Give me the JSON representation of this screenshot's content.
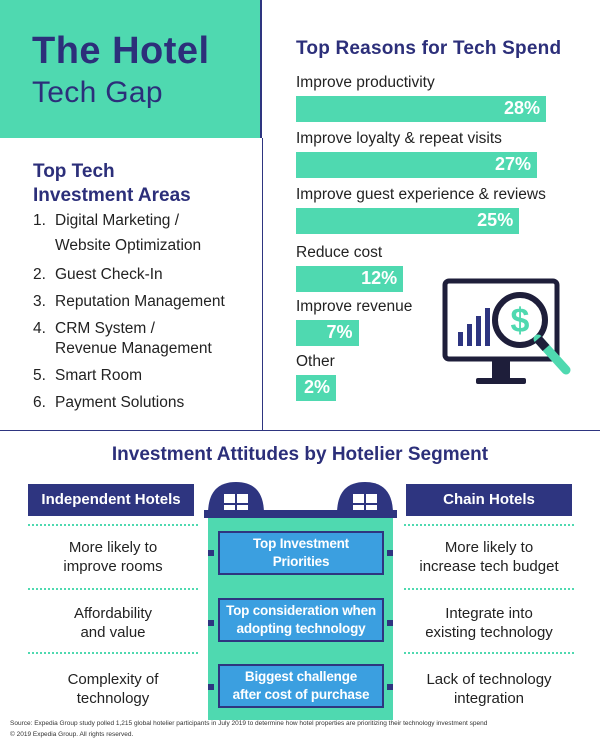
{
  "hero": {
    "title_line1": "The Hotel",
    "title_line2": "Tech Gap"
  },
  "areas": {
    "title_line1": "Top Tech",
    "title_line2": "Investment Areas",
    "items": [
      {
        "num": "1.",
        "line1": "Digital Marketing /",
        "line2": "Website Optimization"
      },
      {
        "num": "2.",
        "line1": "Guest Check-In",
        "line2": ""
      },
      {
        "num": "3.",
        "line1": "Reputation Management",
        "line2": ""
      },
      {
        "num": "4.",
        "line1": "CRM System /",
        "line2": "Revenue Management"
      },
      {
        "num": "5.",
        "line1": "Smart Room",
        "line2": ""
      },
      {
        "num": "6.",
        "line1": "Payment Solutions",
        "line2": ""
      }
    ]
  },
  "reasons": {
    "title": "Top Reasons for Tech Spend",
    "items": [
      {
        "label": "Improve productivity",
        "value": 28,
        "value_label": "28%"
      },
      {
        "label": "Improve loyalty & repeat visits",
        "value": 27,
        "value_label": "27%"
      },
      {
        "label": "Improve guest experience & reviews",
        "value": 25,
        "value_label": "25%"
      },
      {
        "label": "Reduce cost",
        "value": 12,
        "value_label": "12%"
      },
      {
        "label": "Improve revenue",
        "value": 7,
        "value_label": "7%"
      },
      {
        "label": "Other",
        "value": 2,
        "value_label": "2%"
      }
    ]
  },
  "attitudes": {
    "title": "Investment Attitudes by Hotelier Segment",
    "independent_label": "Independent Hotels",
    "chain_label": "Chain Hotels",
    "rows": [
      {
        "independent": [
          "More likely to",
          "improve rooms"
        ],
        "center": [
          "Top Investment",
          "Priorities"
        ],
        "chain": [
          "More likely to",
          "increase tech budget"
        ]
      },
      {
        "independent": [
          "Affordability",
          "and value"
        ],
        "center": [
          "Top consideration when",
          "adopting technology"
        ],
        "chain": [
          "Integrate into",
          "existing technology"
        ]
      },
      {
        "independent": [
          "Complexity of",
          "technology"
        ],
        "center": [
          "Biggest challenge",
          "after cost of purchase"
        ],
        "chain": [
          "Lack of technology",
          "integration"
        ]
      }
    ]
  },
  "footer": {
    "source": "Source: Expedia Group study polled 1,215 global hotelier participants in July 2019 to determine how hotel properties are prioritizing their technology investment spend",
    "copyright": "© 2019 Expedia Group. All rights reserved."
  },
  "colors": {
    "navy": "#2e3580",
    "teal": "#4fd9b0",
    "blue": "#3b9fe0"
  },
  "icons": {
    "monitor": "monitor-dollar-magnifier-icon",
    "building": "hotel-building-icon"
  }
}
